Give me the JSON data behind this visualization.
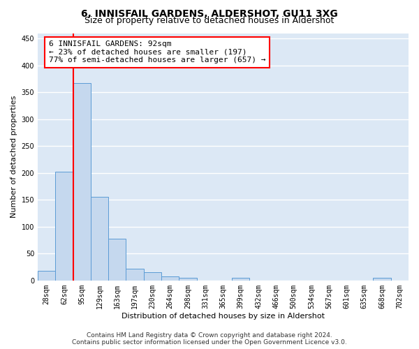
{
  "title": "6, INNISFAIL GARDENS, ALDERSHOT, GU11 3XG",
  "subtitle": "Size of property relative to detached houses in Aldershot",
  "xlabel": "Distribution of detached houses by size in Aldershot",
  "ylabel": "Number of detached properties",
  "bar_labels": [
    "28sqm",
    "62sqm",
    "95sqm",
    "129sqm",
    "163sqm",
    "197sqm",
    "230sqm",
    "264sqm",
    "298sqm",
    "331sqm",
    "365sqm",
    "399sqm",
    "432sqm",
    "466sqm",
    "500sqm",
    "534sqm",
    "567sqm",
    "601sqm",
    "635sqm",
    "668sqm",
    "702sqm"
  ],
  "bar_values": [
    18,
    202,
    367,
    155,
    78,
    22,
    15,
    8,
    5,
    0,
    0,
    5,
    0,
    0,
    0,
    0,
    0,
    0,
    0,
    5,
    0
  ],
  "bar_color": "#c5d8ee",
  "bar_edge_color": "#5b9bd5",
  "property_line_index": 2,
  "annotation_text": "6 INNISFAIL GARDENS: 92sqm\n← 23% of detached houses are smaller (197)\n77% of semi-detached houses are larger (657) →",
  "annotation_box_color": "white",
  "annotation_box_edge_color": "red",
  "line_color": "red",
  "ylim": [
    0,
    460
  ],
  "yticks": [
    0,
    50,
    100,
    150,
    200,
    250,
    300,
    350,
    400,
    450
  ],
  "background_color": "#dce8f5",
  "grid_color": "#c8d8e8",
  "footer_line1": "Contains HM Land Registry data © Crown copyright and database right 2024.",
  "footer_line2": "Contains public sector information licensed under the Open Government Licence v3.0.",
  "title_fontsize": 10,
  "subtitle_fontsize": 9,
  "axis_label_fontsize": 8,
  "tick_fontsize": 7,
  "annotation_fontsize": 8,
  "footer_fontsize": 6.5
}
